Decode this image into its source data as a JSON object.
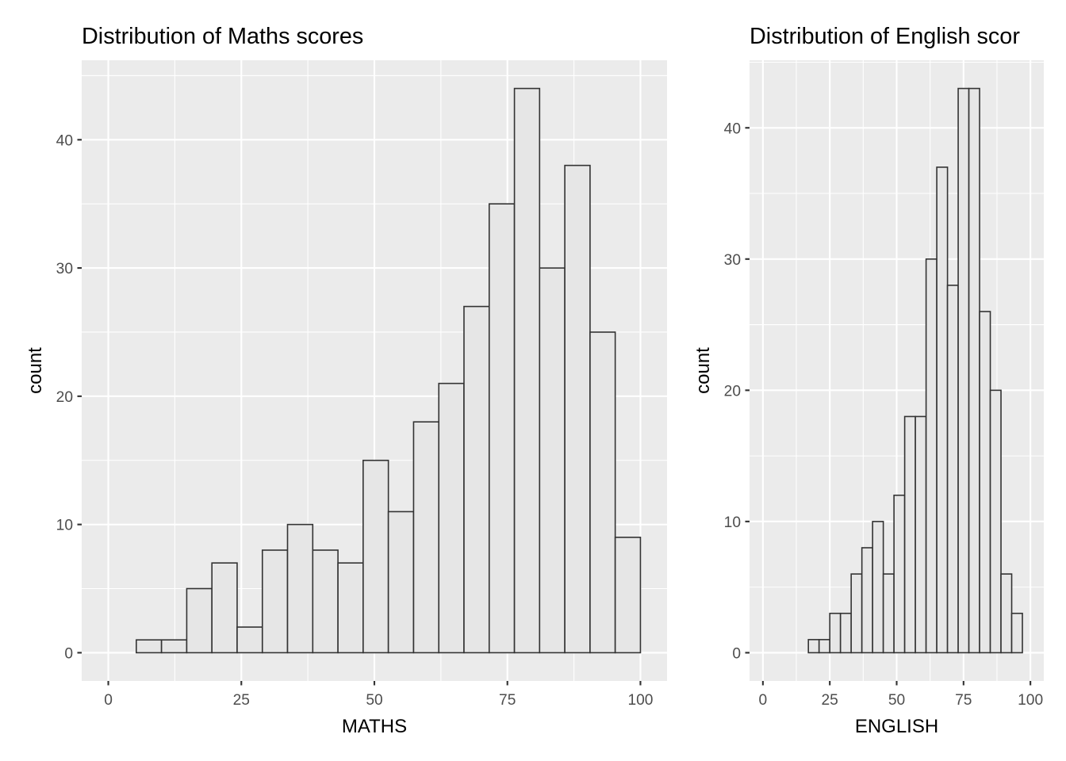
{
  "chart_data": [
    {
      "type": "histogram",
      "title": "Distribution of Maths scores",
      "xlabel": "MATHS",
      "ylabel": "count",
      "xlim": [
        -5,
        105
      ],
      "ylim": [
        -2.2,
        46.2
      ],
      "xticks": [
        0,
        25,
        50,
        75,
        100
      ],
      "yticks": [
        0,
        10,
        20,
        30,
        40
      ],
      "xtick_labels": [
        "0",
        "25",
        "50",
        "75",
        "100"
      ],
      "ytick_labels": [
        "0",
        "10",
        "20",
        "30",
        "40"
      ],
      "grid": true,
      "bins": [
        {
          "x0": 5.26,
          "x1": 10.0,
          "count": 1
        },
        {
          "x0": 10.0,
          "x1": 14.74,
          "count": 1
        },
        {
          "x0": 14.74,
          "x1": 19.47,
          "count": 5
        },
        {
          "x0": 19.47,
          "x1": 24.21,
          "count": 7
        },
        {
          "x0": 24.21,
          "x1": 28.95,
          "count": 2
        },
        {
          "x0": 28.95,
          "x1": 33.68,
          "count": 8
        },
        {
          "x0": 33.68,
          "x1": 38.42,
          "count": 10
        },
        {
          "x0": 38.42,
          "x1": 43.16,
          "count": 8
        },
        {
          "x0": 43.16,
          "x1": 47.89,
          "count": 7
        },
        {
          "x0": 47.89,
          "x1": 52.63,
          "count": 15
        },
        {
          "x0": 52.63,
          "x1": 57.37,
          "count": 11
        },
        {
          "x0": 57.37,
          "x1": 62.11,
          "count": 18
        },
        {
          "x0": 62.11,
          "x1": 66.84,
          "count": 21
        },
        {
          "x0": 66.84,
          "x1": 71.58,
          "count": 27
        },
        {
          "x0": 71.58,
          "x1": 76.32,
          "count": 35
        },
        {
          "x0": 76.32,
          "x1": 81.05,
          "count": 44
        },
        {
          "x0": 81.05,
          "x1": 85.79,
          "count": 30
        },
        {
          "x0": 85.79,
          "x1": 90.53,
          "count": 38
        },
        {
          "x0": 90.53,
          "x1": 95.26,
          "count": 25
        },
        {
          "x0": 95.26,
          "x1": 100.0,
          "count": 9
        }
      ]
    },
    {
      "type": "histogram",
      "title": "Distribution of English scor",
      "xlabel": "ENGLISH",
      "ylabel": "count",
      "xlim": [
        -5,
        105
      ],
      "ylim": [
        -2.15,
        45.15
      ],
      "xticks": [
        0,
        25,
        50,
        75,
        100
      ],
      "yticks": [
        0,
        10,
        20,
        30,
        40
      ],
      "xtick_labels": [
        "0",
        "25",
        "50",
        "75",
        "100"
      ],
      "ytick_labels": [
        "0",
        "10",
        "20",
        "30",
        "40"
      ],
      "grid": true,
      "bins": [
        {
          "x0": 17.0,
          "x1": 21.0,
          "count": 1
        },
        {
          "x0": 21.0,
          "x1": 25.0,
          "count": 1
        },
        {
          "x0": 25.0,
          "x1": 29.0,
          "count": 3
        },
        {
          "x0": 29.0,
          "x1": 33.0,
          "count": 3
        },
        {
          "x0": 33.0,
          "x1": 37.0,
          "count": 6
        },
        {
          "x0": 37.0,
          "x1": 41.0,
          "count": 8
        },
        {
          "x0": 41.0,
          "x1": 45.0,
          "count": 10
        },
        {
          "x0": 45.0,
          "x1": 49.0,
          "count": 6
        },
        {
          "x0": 49.0,
          "x1": 53.0,
          "count": 12
        },
        {
          "x0": 53.0,
          "x1": 57.0,
          "count": 18
        },
        {
          "x0": 57.0,
          "x1": 61.0,
          "count": 18
        },
        {
          "x0": 61.0,
          "x1": 65.0,
          "count": 30
        },
        {
          "x0": 65.0,
          "x1": 69.0,
          "count": 37
        },
        {
          "x0": 69.0,
          "x1": 73.0,
          "count": 28
        },
        {
          "x0": 73.0,
          "x1": 77.0,
          "count": 43
        },
        {
          "x0": 77.0,
          "x1": 81.0,
          "count": 43
        },
        {
          "x0": 81.0,
          "x1": 85.0,
          "count": 26
        },
        {
          "x0": 85.0,
          "x1": 89.0,
          "count": 20
        },
        {
          "x0": 89.0,
          "x1": 93.0,
          "count": 6
        },
        {
          "x0": 93.0,
          "x1": 97.0,
          "count": 3
        }
      ]
    }
  ]
}
